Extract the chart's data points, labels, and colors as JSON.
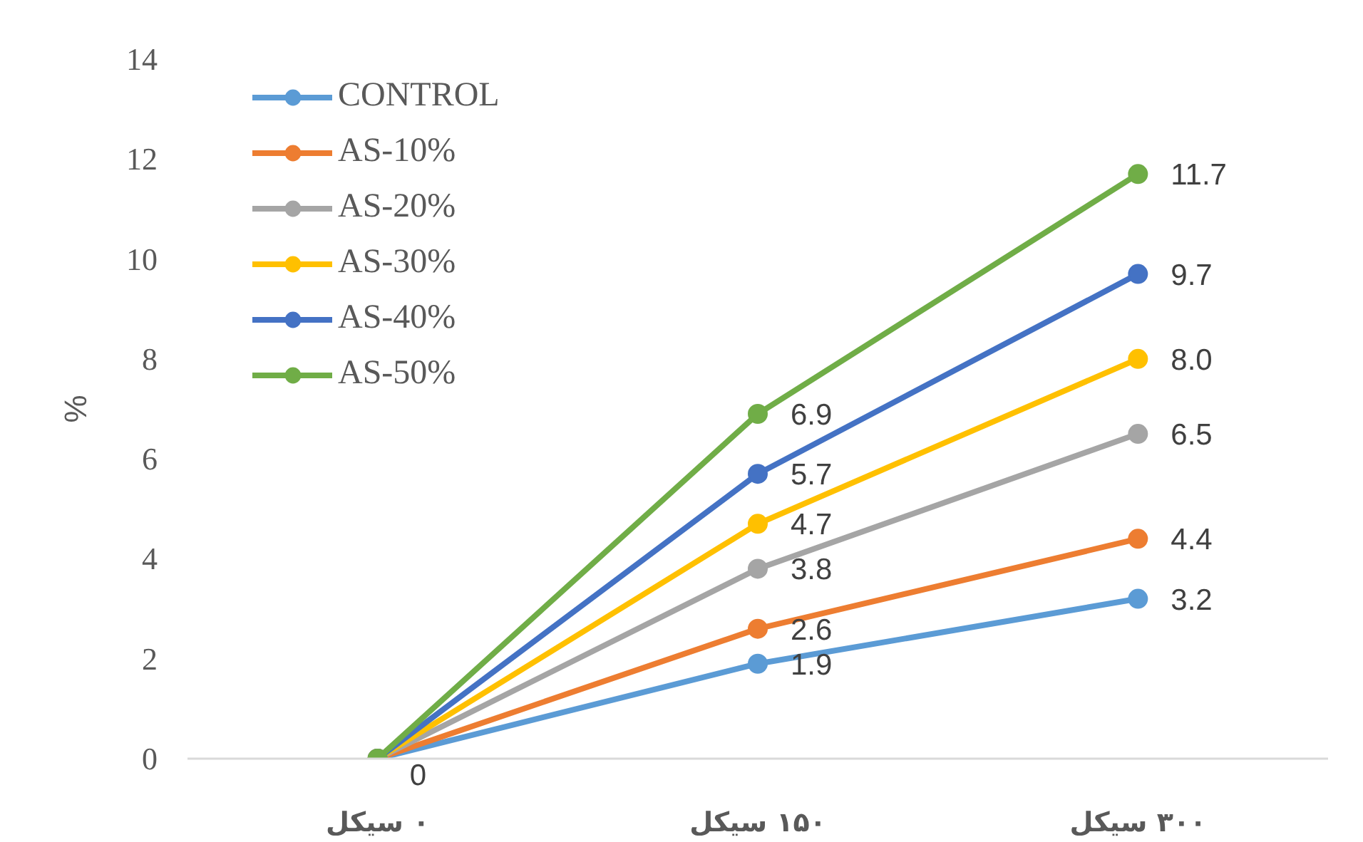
{
  "chart_data": {
    "type": "line",
    "ylabel": "%",
    "categories": [
      "۰ سیکل",
      "۱۵۰ سیکل",
      "۳۰۰ سیکل"
    ],
    "ylim": [
      0,
      14
    ],
    "yticks": [
      0,
      2,
      4,
      6,
      8,
      10,
      12,
      14
    ],
    "legend": "top left",
    "marker": "circle",
    "series": [
      {
        "name": "CONTROL",
        "color": "#5b9bd5",
        "values": [
          0,
          1.9,
          3.2
        ],
        "value_labels": [
          "0",
          "1.9",
          "3.2"
        ]
      },
      {
        "name": "AS-10%",
        "color": "#ed7d31",
        "values": [
          0,
          2.6,
          4.4
        ],
        "value_labels": [
          null,
          "2.6",
          "4.4"
        ]
      },
      {
        "name": "AS-20%",
        "color": "#a5a5a5",
        "values": [
          0,
          3.8,
          6.5
        ],
        "value_labels": [
          null,
          "3.8",
          "6.5"
        ]
      },
      {
        "name": "AS-30%",
        "color": "#ffc000",
        "values": [
          0,
          4.7,
          8.0
        ],
        "value_labels": [
          null,
          "4.7",
          "8.0"
        ]
      },
      {
        "name": "AS-40%",
        "color": "#4472c4",
        "values": [
          0,
          5.7,
          9.7
        ],
        "value_labels": [
          null,
          "5.7",
          "9.7"
        ]
      },
      {
        "name": "AS-50%",
        "color": "#70ad47",
        "values": [
          0,
          6.9,
          11.7
        ],
        "value_labels": [
          null,
          "6.9",
          "11.7"
        ]
      }
    ]
  }
}
